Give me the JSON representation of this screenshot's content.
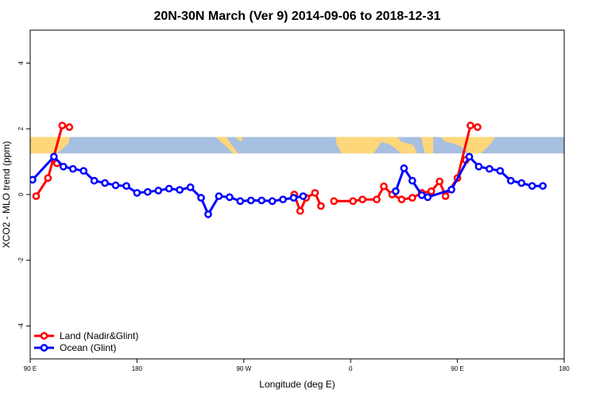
{
  "chart_data": {
    "type": "line",
    "title": "20N-30N March (Ver 9)   2014-09-06 to 2018-12-31",
    "xlabel": "Longitude (deg E)",
    "ylabel": "XCO2 - MLO trend (ppm)",
    "xlim": [
      90,
      540
    ],
    "ylim": [
      -5,
      5
    ],
    "x_ticks": [
      {
        "value": 90,
        "label": "90 E"
      },
      {
        "value": 180,
        "label": "180"
      },
      {
        "value": 270,
        "label": "90 W"
      },
      {
        "value": 360,
        "label": "0"
      },
      {
        "value": 450,
        "label": "90 E"
      },
      {
        "value": 540,
        "label": "180"
      }
    ],
    "y_ticks": [
      {
        "value": -4,
        "label": "-4"
      },
      {
        "value": -2,
        "label": "-2"
      },
      {
        "value": 0,
        "label": "0"
      },
      {
        "value": 2,
        "label": "2"
      },
      {
        "value": 4,
        "label": "4"
      }
    ],
    "grid": false,
    "legend_position": "bottom-left",
    "map_strip": {
      "y_from": 1.25,
      "y_to": 1.75,
      "ocean_color": "#a7bfe0",
      "land_color": "#fdd77a"
    },
    "series": [
      {
        "name": "Land (Nadir&Glint)",
        "color": "#ff0000",
        "segments": [
          [
            [
              95,
              -0.05
            ],
            [
              105,
              0.5
            ],
            [
              117,
              2.1
            ],
            [
              123,
              2.05
            ]
          ],
          [
            [
              112.5,
              0.95
            ]
          ],
          [
            [
              312.5,
              0.0
            ],
            [
              317.5,
              -0.5
            ],
            [
              322.5,
              -0.1
            ],
            [
              330,
              0.05
            ],
            [
              335,
              -0.35
            ]
          ],
          [
            [
              346,
              -0.2
            ],
            [
              362,
              -0.2
            ],
            [
              370,
              -0.15
            ],
            [
              382,
              -0.15
            ],
            [
              388,
              0.25
            ],
            [
              395,
              0.0
            ],
            [
              403,
              -0.15
            ],
            [
              412,
              -0.1
            ],
            [
              420,
              0.05
            ],
            [
              428,
              0.1
            ],
            [
              435,
              0.4
            ],
            [
              440,
              -0.05
            ],
            [
              450,
              0.5
            ],
            [
              461,
              2.1
            ],
            [
              467,
              2.05
            ]
          ],
          [
            [
              457,
              1.05
            ]
          ]
        ]
      },
      {
        "name": "Ocean (Glint)",
        "color": "#0000ff",
        "segments": [
          [
            [
              92,
              0.45
            ],
            [
              110,
              1.15
            ],
            [
              118,
              0.85
            ],
            [
              126,
              0.78
            ],
            [
              135,
              0.72
            ],
            [
              144,
              0.42
            ],
            [
              153,
              0.35
            ],
            [
              162,
              0.28
            ],
            [
              171,
              0.26
            ],
            [
              180,
              0.05
            ],
            [
              189,
              0.08
            ],
            [
              198,
              0.12
            ],
            [
              207,
              0.18
            ],
            [
              216,
              0.14
            ],
            [
              225,
              0.22
            ],
            [
              234,
              -0.1
            ],
            [
              240,
              -0.6
            ],
            [
              249,
              -0.05
            ],
            [
              258,
              -0.08
            ],
            [
              267,
              -0.2
            ],
            [
              276,
              -0.18
            ],
            [
              285,
              -0.18
            ],
            [
              294,
              -0.2
            ],
            [
              303,
              -0.15
            ],
            [
              312,
              -0.1
            ],
            [
              320,
              -0.05
            ]
          ],
          [
            [
              398,
              0.1
            ],
            [
              405,
              0.8
            ],
            [
              412,
              0.42
            ],
            [
              420,
              -0.02
            ],
            [
              425,
              -0.08
            ],
            [
              445,
              0.15
            ],
            [
              460,
              1.15
            ],
            [
              468,
              0.85
            ],
            [
              477,
              0.78
            ],
            [
              486,
              0.72
            ],
            [
              495,
              0.42
            ],
            [
              504,
              0.35
            ],
            [
              513,
              0.26
            ],
            [
              522,
              0.26
            ]
          ]
        ]
      }
    ]
  }
}
